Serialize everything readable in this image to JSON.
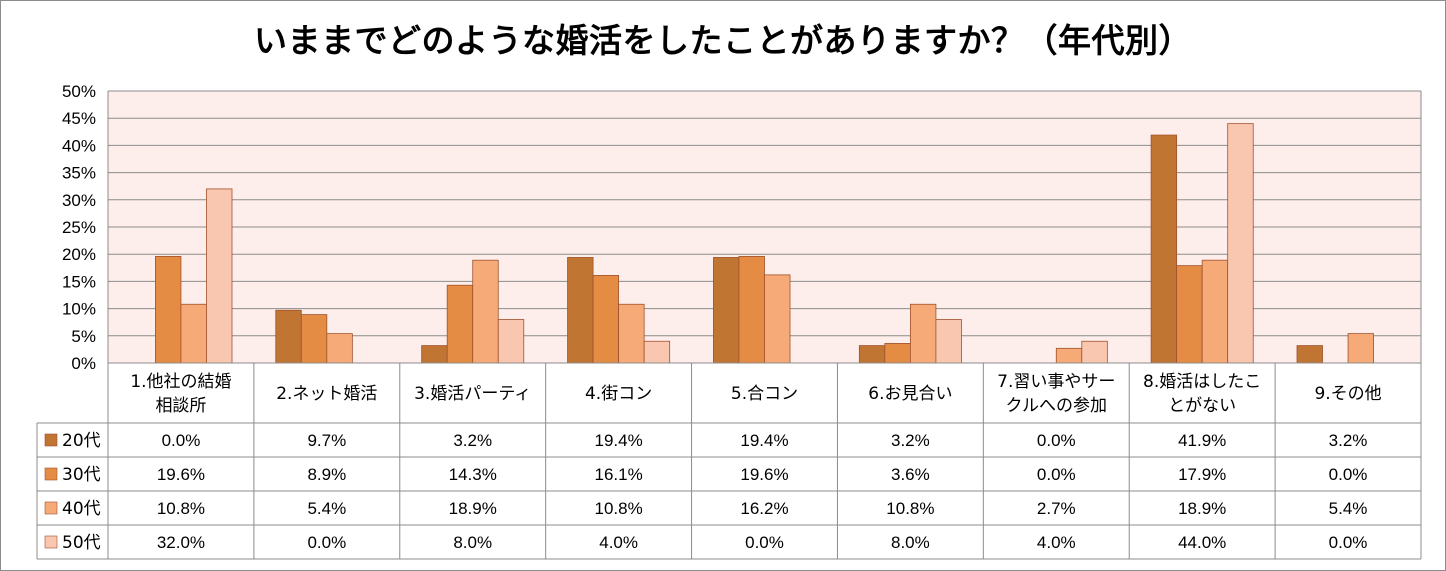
{
  "chart_data": {
    "type": "bar",
    "title": "いままでどのような婚活をしたことがありますか？（年代別）",
    "ylim": [
      0,
      50
    ],
    "yticks": [
      "0%",
      "5%",
      "10%",
      "15%",
      "20%",
      "25%",
      "30%",
      "35%",
      "40%",
      "45%",
      "50%"
    ],
    "grid": true,
    "legend_placement": "data-table-left",
    "categories": [
      [
        "1.他社の結婚",
        "相談所"
      ],
      [
        "2.ネット婚活"
      ],
      [
        "3.婚活パーティ"
      ],
      [
        "4.街コン"
      ],
      [
        "5.合コン"
      ],
      [
        "6.お見合い"
      ],
      [
        "7.習い事やサー",
        "クルへの参加"
      ],
      [
        "8.婚活はしたこ",
        "とがない"
      ],
      [
        "9.その他"
      ]
    ],
    "series": [
      {
        "name": "20代",
        "color": "#c07533",
        "values": [
          0.0,
          9.7,
          3.2,
          19.4,
          19.4,
          3.2,
          0.0,
          41.9,
          3.2
        ],
        "labels": [
          "0.0%",
          "9.7%",
          "3.2%",
          "19.4%",
          "19.4%",
          "3.2%",
          "0.0%",
          "41.9%",
          "3.2%"
        ]
      },
      {
        "name": "30代",
        "color": "#e48c43",
        "values": [
          19.6,
          8.9,
          14.3,
          16.1,
          19.6,
          3.6,
          0.0,
          17.9,
          0.0
        ],
        "labels": [
          "19.6%",
          "8.9%",
          "14.3%",
          "16.1%",
          "19.6%",
          "3.6%",
          "0.0%",
          "17.9%",
          "0.0%"
        ]
      },
      {
        "name": "40代",
        "color": "#f6aa78",
        "values": [
          10.8,
          5.4,
          18.9,
          10.8,
          16.2,
          10.8,
          2.7,
          18.9,
          5.4
        ],
        "labels": [
          "10.8%",
          "5.4%",
          "18.9%",
          "10.8%",
          "16.2%",
          "10.8%",
          "2.7%",
          "18.9%",
          "5.4%"
        ]
      },
      {
        "name": "50代",
        "color": "#f9c7b0",
        "values": [
          32.0,
          0.0,
          8.0,
          4.0,
          0.0,
          8.0,
          4.0,
          44.0,
          0.0
        ],
        "labels": [
          "32.0%",
          "0.0%",
          "8.0%",
          "4.0%",
          "0.0%",
          "8.0%",
          "4.0%",
          "44.0%",
          "0.0%"
        ]
      }
    ],
    "colors": {
      "plot_background": "#fdeeeb",
      "gridline": "#8c8c8c",
      "bar_outline": "#a0522d"
    }
  }
}
